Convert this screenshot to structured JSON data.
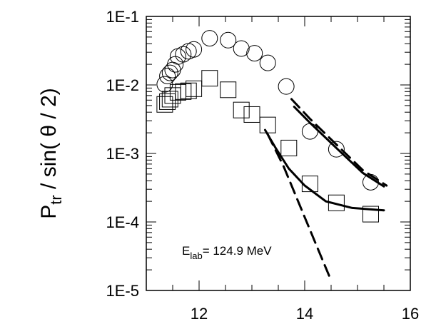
{
  "chart_data": {
    "type": "scatter",
    "title": "",
    "xlabel": "",
    "ylabel": {
      "main": "P",
      "sub": "tr",
      "rest": " / sin( θ / 2)"
    },
    "xlim": [
      11,
      16
    ],
    "ylim": [
      1e-05,
      0.1
    ],
    "yscale": "log",
    "grid": false,
    "x_ticks": [
      {
        "value": 12,
        "label": "12"
      },
      {
        "value": 14,
        "label": "14"
      },
      {
        "value": 16,
        "label": "16"
      }
    ],
    "y_ticks": [
      {
        "value": 0.1,
        "label": "1E-1"
      },
      {
        "value": 0.01,
        "label": "1E-2"
      },
      {
        "value": 0.001,
        "label": "1E-3"
      },
      {
        "value": 0.0001,
        "label": "1E-4"
      },
      {
        "value": 1e-05,
        "label": "1E-5"
      }
    ],
    "annotation": {
      "main": "E",
      "sub": "lab",
      "rest": "= 124.9 MeV"
    },
    "series": [
      {
        "marker": "circle",
        "points": [
          [
            11.35,
            0.0102
          ],
          [
            11.4,
            0.0135
          ],
          [
            11.45,
            0.015
          ],
          [
            11.5,
            0.0165
          ],
          [
            11.55,
            0.02
          ],
          [
            11.6,
            0.026
          ],
          [
            11.7,
            0.028
          ],
          [
            11.8,
            0.031
          ],
          [
            11.9,
            0.033
          ],
          [
            12.2,
            0.048
          ],
          [
            12.55,
            0.045
          ],
          [
            12.8,
            0.034
          ],
          [
            13.05,
            0.029
          ],
          [
            13.3,
            0.021
          ],
          [
            13.65,
            0.0095
          ],
          [
            14.1,
            0.0021
          ],
          [
            14.6,
            0.00115
          ],
          [
            15.25,
            0.00038
          ]
        ]
      },
      {
        "marker": "square",
        "points": [
          [
            11.35,
            0.0052
          ],
          [
            11.4,
            0.0057
          ],
          [
            11.45,
            0.0062
          ],
          [
            11.5,
            0.007
          ],
          [
            11.6,
            0.0078
          ],
          [
            11.7,
            0.008
          ],
          [
            11.8,
            0.0082
          ],
          [
            11.9,
            0.0088
          ],
          [
            12.2,
            0.0125
          ],
          [
            12.55,
            0.0085
          ],
          [
            12.8,
            0.0043
          ],
          [
            13.0,
            0.0037
          ],
          [
            13.3,
            0.0026
          ],
          [
            13.7,
            0.0012
          ],
          [
            14.1,
            0.00036
          ],
          [
            14.6,
            0.00019
          ],
          [
            15.25,
            0.00013
          ]
        ]
      }
    ],
    "curves": [
      {
        "style": "solid",
        "points": [
          [
            13.8,
            0.0048
          ],
          [
            14.1,
            0.0028
          ],
          [
            14.6,
            0.0012
          ],
          [
            15.1,
            0.00052
          ],
          [
            15.5,
            0.00033
          ]
        ]
      },
      {
        "style": "dashed",
        "points": [
          [
            13.75,
            0.0062
          ],
          [
            14.1,
            0.0032
          ],
          [
            14.6,
            0.00135
          ],
          [
            15.1,
            0.00057
          ],
          [
            15.55,
            0.00034
          ]
        ]
      },
      {
        "style": "solid",
        "points": [
          [
            13.25,
            0.0022
          ],
          [
            13.45,
            0.0012
          ],
          [
            13.7,
            0.0006
          ],
          [
            14.0,
            0.00034
          ],
          [
            14.4,
            0.0002
          ],
          [
            14.9,
            0.00016
          ],
          [
            15.5,
            0.000148
          ]
        ]
      },
      {
        "style": "dashed",
        "points": [
          [
            13.3,
            0.0019
          ],
          [
            13.6,
            0.00065
          ],
          [
            13.9,
            0.00018
          ],
          [
            14.2,
            5e-05
          ],
          [
            14.5,
            1.4e-05
          ]
        ]
      }
    ]
  }
}
